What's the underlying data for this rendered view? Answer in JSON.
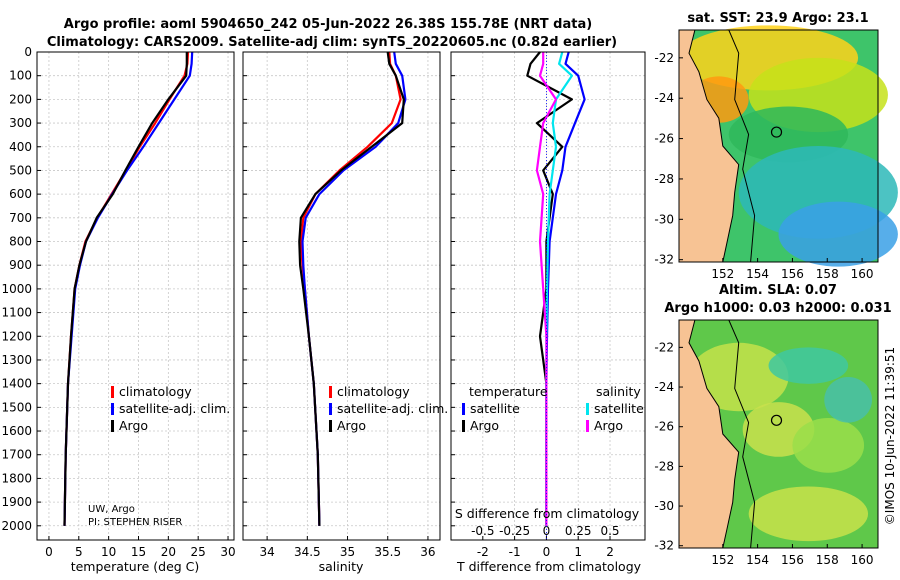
{
  "header": {
    "title_line1": "Argo profile: aoml 5904650_242 05-Jun-2022 26.38S 155.78E (NRT data)",
    "title_line2": "Climatology: CARS2009. Satellite-adj clim: synTS_20220605.nc (0.82d earlier)"
  },
  "chart_data": [
    {
      "id": "temperature",
      "type": "line",
      "xlabel": "temperature (deg C)",
      "ylabel": "",
      "xlim": [
        -2,
        31
      ],
      "ylim": [
        2060,
        0
      ],
      "xticks": [
        0,
        5,
        10,
        15,
        20,
        25,
        30
      ],
      "yticks": [
        0,
        100,
        200,
        300,
        400,
        500,
        600,
        700,
        800,
        900,
        1000,
        1100,
        1200,
        1300,
        1400,
        1500,
        1600,
        1700,
        1800,
        1900,
        2000
      ],
      "series": [
        {
          "name": "climatology",
          "color": "#ff0000",
          "x": [
            23.3,
            23.2,
            22.7,
            20.2,
            17.8,
            15.2,
            12.9,
            10.5,
            8.1,
            6.1,
            5.1,
            4.3,
            3.7,
            3.2,
            2.8,
            2.6
          ],
          "y": [
            0,
            50,
            100,
            200,
            300,
            400,
            500,
            600,
            700,
            800,
            900,
            1000,
            1200,
            1400,
            1700,
            2000
          ]
        },
        {
          "name": "satellite-adj. clim.",
          "color": "#0000ff",
          "x": [
            24.0,
            23.9,
            23.6,
            21.0,
            18.4,
            15.8,
            13.1,
            10.6,
            8.2,
            6.2,
            5.2,
            4.4,
            3.8,
            3.2,
            2.8,
            2.6
          ],
          "y": [
            0,
            50,
            100,
            200,
            300,
            400,
            500,
            600,
            700,
            800,
            900,
            1000,
            1200,
            1400,
            1700,
            2000
          ]
        },
        {
          "name": "Argo",
          "color": "#000000",
          "x": [
            23.1,
            23.1,
            23.0,
            20.0,
            17.3,
            15.0,
            12.8,
            10.7,
            8.0,
            6.2,
            5.1,
            4.3,
            3.7,
            3.2,
            2.8,
            2.6
          ],
          "y": [
            0,
            50,
            100,
            200,
            300,
            400,
            500,
            600,
            700,
            800,
            900,
            1000,
            1200,
            1400,
            1700,
            2000
          ]
        }
      ],
      "legend": [
        "climatology",
        "satellite-adj. clim.",
        "Argo"
      ],
      "annotation": [
        "UW, Argo",
        "PI: STEPHEN RISER"
      ]
    },
    {
      "id": "salinity",
      "type": "line",
      "xlabel": "salinity",
      "xlim": [
        33.7,
        36.15
      ],
      "ylim": [
        2060,
        0
      ],
      "xticks": [
        34,
        34.5,
        35,
        35.5,
        36
      ],
      "series": [
        {
          "name": "climatology",
          "color": "#ff0000",
          "x": [
            35.52,
            35.53,
            35.6,
            35.66,
            35.55,
            35.25,
            34.9,
            34.6,
            34.45,
            34.42,
            34.44,
            34.47,
            34.52,
            34.58,
            34.63,
            34.65
          ],
          "y": [
            0,
            50,
            100,
            200,
            300,
            400,
            500,
            600,
            700,
            800,
            900,
            1000,
            1200,
            1400,
            1700,
            2000
          ]
        },
        {
          "name": "satellite-adj. clim.",
          "color": "#0000ff",
          "x": [
            35.58,
            35.6,
            35.68,
            35.72,
            35.63,
            35.35,
            34.95,
            34.65,
            34.48,
            34.44,
            34.45,
            34.47,
            34.52,
            34.58,
            34.63,
            34.65
          ],
          "y": [
            0,
            50,
            100,
            200,
            300,
            400,
            500,
            600,
            700,
            800,
            900,
            1000,
            1200,
            1400,
            1700,
            2000
          ]
        },
        {
          "name": "Argo",
          "color": "#000000",
          "x": [
            35.5,
            35.52,
            35.6,
            35.7,
            35.68,
            35.3,
            34.92,
            34.6,
            34.42,
            34.4,
            34.41,
            34.45,
            34.52,
            34.58,
            34.63,
            34.65
          ],
          "y": [
            0,
            50,
            100,
            200,
            300,
            400,
            500,
            600,
            700,
            800,
            900,
            1000,
            1200,
            1400,
            1700,
            2000
          ]
        }
      ],
      "legend": [
        "climatology",
        "satellite-adj. clim.",
        "Argo"
      ]
    },
    {
      "id": "difference",
      "type": "line",
      "xlabel": "T difference from climatology",
      "top_xlabel": "S difference from climatology",
      "xlim": [
        -3,
        3.1
      ],
      "ylim": [
        2060,
        0
      ],
      "xticks": [
        -2,
        -1,
        0,
        1,
        2
      ],
      "top_xticks": [
        "-0.5",
        "-0.25",
        "0",
        "0.25",
        "0.5"
      ],
      "top_xtick_pos": [
        -2,
        -1,
        0,
        1,
        2
      ],
      "series": [
        {
          "name": "temperature satellite",
          "color": "#0000ff",
          "x": [
            0.7,
            0.6,
            1.0,
            1.2,
            0.9,
            0.6,
            0.5,
            0.3,
            0.1,
            0.05,
            0.02,
            0.0,
            0.0,
            0.0
          ],
          "y": [
            0,
            50,
            100,
            200,
            300,
            400,
            500,
            600,
            800,
            1000,
            1200,
            1400,
            1700,
            2000
          ]
        },
        {
          "name": "temperature Argo",
          "color": "#000000",
          "x": [
            -0.2,
            -0.5,
            -0.6,
            0.8,
            -0.3,
            0.5,
            -0.1,
            0.2,
            0.0,
            0.0,
            -0.2,
            0.0,
            0.0,
            0.0
          ],
          "y": [
            0,
            50,
            100,
            200,
            300,
            400,
            500,
            600,
            800,
            1000,
            1200,
            1400,
            1700,
            2000
          ]
        },
        {
          "name": "salinity satellite",
          "color": "#00e5ee",
          "x": [
            0.5,
            0.4,
            0.8,
            0.3,
            0.2,
            0.3,
            0.2,
            0.1,
            0.05,
            0.02,
            0.0,
            0.0,
            0.0,
            0.0
          ],
          "y": [
            0,
            50,
            100,
            200,
            300,
            400,
            500,
            600,
            800,
            1000,
            1200,
            1400,
            1700,
            2000
          ]
        },
        {
          "name": "salinity Argo",
          "color": "#ff00ff",
          "x": [
            -0.1,
            -0.1,
            -0.2,
            0.3,
            -0.1,
            -0.2,
            -0.3,
            -0.1,
            -0.2,
            -0.1,
            0.0,
            0.0,
            0.0,
            0.0
          ],
          "y": [
            0,
            50,
            100,
            200,
            300,
            400,
            500,
            600,
            800,
            1000,
            1200,
            1400,
            1700,
            2000
          ]
        }
      ],
      "legend_temperature": {
        "title": "temperature",
        "items": [
          "satellite",
          "Argo"
        ]
      },
      "legend_salinity": {
        "title": "salinity",
        "items": [
          "satellite",
          "Argo"
        ]
      }
    }
  ],
  "maps": {
    "sst": {
      "title": "sat. SST: 23.9 Argo: 23.1",
      "yticks": [
        "-22",
        "-24",
        "-26",
        "-28",
        "-30",
        "-32"
      ],
      "xticks": [
        "152",
        "154",
        "156",
        "158",
        "160"
      ]
    },
    "sla": {
      "title_line1": "Altim. SLA: 0.07",
      "title_line2": "Argo h1000: 0.03 h2000: 0.031",
      "yticks": [
        "-22",
        "-24",
        "-26",
        "-28",
        "-30",
        "-32"
      ],
      "xticks": [
        "152",
        "154",
        "156",
        "158",
        "160"
      ]
    }
  },
  "footer": {
    "credit": "©IMOS 10-Jun-2022 11:39:51"
  }
}
